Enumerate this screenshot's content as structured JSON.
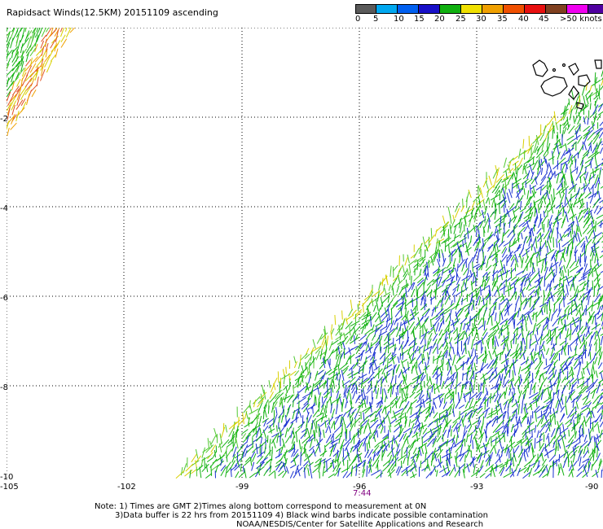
{
  "header": {
    "title": "Rapidsact Winds(12.5KM) 20151109 ascending"
  },
  "legend": {
    "colors": [
      "#5a5a5a",
      "#00a8f0",
      "#0060f0",
      "#1810c8",
      "#10b010",
      "#f0e000",
      "#f0a000",
      "#f05000",
      "#e81010",
      "#804020",
      "#f000f0",
      "#5000a0"
    ],
    "labels": [
      "0",
      "5",
      "10",
      "15",
      "20",
      "25",
      "30",
      "35",
      "40",
      "45",
      ">50 knots"
    ]
  },
  "axes": {
    "lat_labels": [
      "-2",
      "-4",
      "-6",
      "-8",
      "-10"
    ],
    "lon_labels": [
      "-105",
      "-102",
      "-99",
      "-96",
      "-93",
      "-90"
    ],
    "time_label": "7:44"
  },
  "notes": {
    "line1": "Note: 1) Times are GMT 2)Times along bottom correspond to measurement at 0N",
    "line2": "3)Data buffer is 22 hrs from 20151109 4) Black wind barbs indicate possible contamination",
    "line3": "NOAA/NESDIS/Center for Satellite Applications and Research"
  }
}
